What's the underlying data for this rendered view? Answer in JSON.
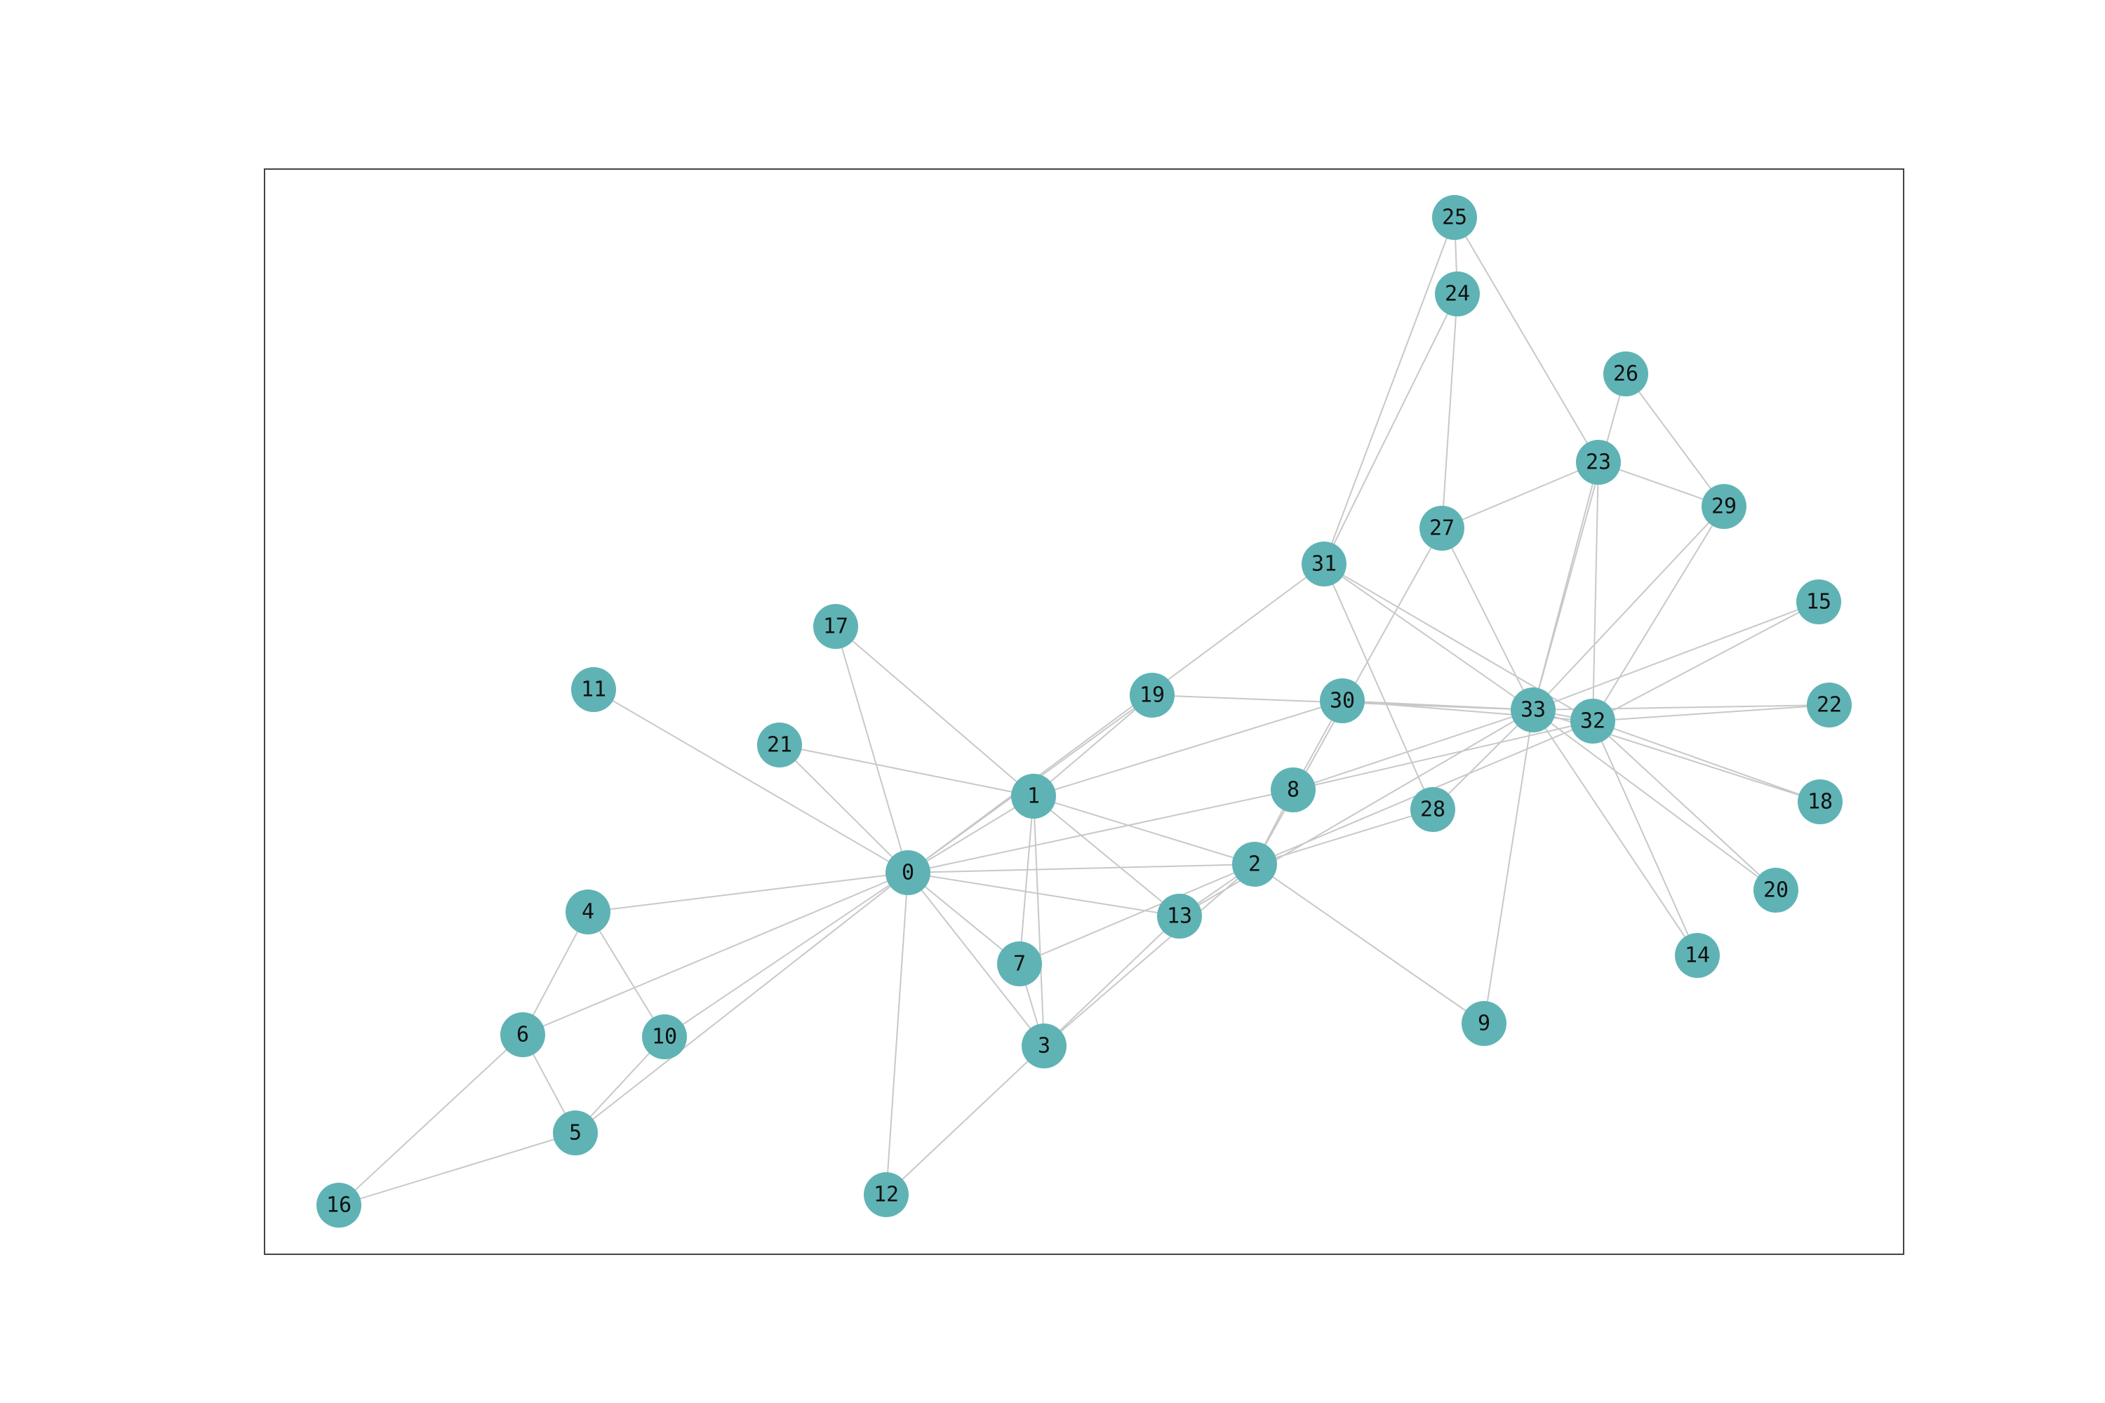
{
  "graph": {
    "node_color": "#5fb3b5",
    "edge_color": "#c8c8c8",
    "nodes": [
      {
        "id": "0"
      },
      {
        "id": "1"
      },
      {
        "id": "2"
      },
      {
        "id": "3"
      },
      {
        "id": "4"
      },
      {
        "id": "5"
      },
      {
        "id": "6"
      },
      {
        "id": "7"
      },
      {
        "id": "8"
      },
      {
        "id": "9"
      },
      {
        "id": "10"
      },
      {
        "id": "11"
      },
      {
        "id": "12"
      },
      {
        "id": "13"
      },
      {
        "id": "14"
      },
      {
        "id": "15"
      },
      {
        "id": "16"
      },
      {
        "id": "17"
      },
      {
        "id": "18"
      },
      {
        "id": "19"
      },
      {
        "id": "20"
      },
      {
        "id": "21"
      },
      {
        "id": "22"
      },
      {
        "id": "23"
      },
      {
        "id": "24"
      },
      {
        "id": "25"
      },
      {
        "id": "26"
      },
      {
        "id": "27"
      },
      {
        "id": "28"
      },
      {
        "id": "29"
      },
      {
        "id": "30"
      },
      {
        "id": "31"
      },
      {
        "id": "32"
      },
      {
        "id": "33"
      }
    ],
    "edges": [
      [
        "0",
        "1"
      ],
      [
        "0",
        "2"
      ],
      [
        "0",
        "3"
      ],
      [
        "0",
        "4"
      ],
      [
        "0",
        "5"
      ],
      [
        "0",
        "6"
      ],
      [
        "0",
        "7"
      ],
      [
        "0",
        "8"
      ],
      [
        "0",
        "10"
      ],
      [
        "0",
        "11"
      ],
      [
        "0",
        "12"
      ],
      [
        "0",
        "13"
      ],
      [
        "0",
        "17"
      ],
      [
        "0",
        "19"
      ],
      [
        "0",
        "21"
      ],
      [
        "0",
        "31"
      ],
      [
        "1",
        "2"
      ],
      [
        "1",
        "3"
      ],
      [
        "1",
        "7"
      ],
      [
        "1",
        "13"
      ],
      [
        "1",
        "17"
      ],
      [
        "1",
        "19"
      ],
      [
        "1",
        "21"
      ],
      [
        "1",
        "30"
      ],
      [
        "2",
        "3"
      ],
      [
        "2",
        "7"
      ],
      [
        "2",
        "8"
      ],
      [
        "2",
        "9"
      ],
      [
        "2",
        "13"
      ],
      [
        "2",
        "27"
      ],
      [
        "2",
        "28"
      ],
      [
        "2",
        "32"
      ],
      [
        "3",
        "7"
      ],
      [
        "3",
        "12"
      ],
      [
        "3",
        "13"
      ],
      [
        "4",
        "6"
      ],
      [
        "4",
        "10"
      ],
      [
        "5",
        "6"
      ],
      [
        "5",
        "10"
      ],
      [
        "5",
        "16"
      ],
      [
        "6",
        "16"
      ],
      [
        "8",
        "30"
      ],
      [
        "8",
        "32"
      ],
      [
        "8",
        "33"
      ],
      [
        "9",
        "33"
      ],
      [
        "13",
        "33"
      ],
      [
        "14",
        "32"
      ],
      [
        "14",
        "33"
      ],
      [
        "15",
        "32"
      ],
      [
        "15",
        "33"
      ],
      [
        "18",
        "32"
      ],
      [
        "18",
        "33"
      ],
      [
        "19",
        "33"
      ],
      [
        "20",
        "32"
      ],
      [
        "20",
        "33"
      ],
      [
        "22",
        "32"
      ],
      [
        "22",
        "33"
      ],
      [
        "23",
        "25"
      ],
      [
        "23",
        "27"
      ],
      [
        "23",
        "29"
      ],
      [
        "23",
        "32"
      ],
      [
        "23",
        "33"
      ],
      [
        "24",
        "25"
      ],
      [
        "24",
        "27"
      ],
      [
        "24",
        "31"
      ],
      [
        "25",
        "31"
      ],
      [
        "26",
        "29"
      ],
      [
        "26",
        "33"
      ],
      [
        "27",
        "33"
      ],
      [
        "28",
        "31"
      ],
      [
        "28",
        "33"
      ],
      [
        "29",
        "32"
      ],
      [
        "29",
        "33"
      ],
      [
        "30",
        "32"
      ],
      [
        "30",
        "33"
      ],
      [
        "31",
        "32"
      ],
      [
        "31",
        "33"
      ],
      [
        "32",
        "33"
      ]
    ]
  }
}
